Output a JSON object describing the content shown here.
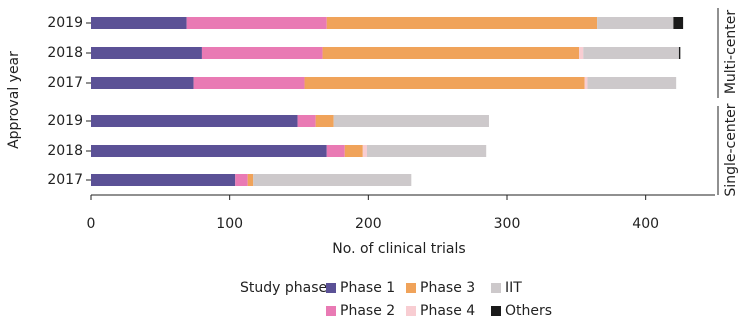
{
  "chart_data": {
    "type": "bar",
    "orientation": "horizontal",
    "stacked": true,
    "x_label": "No. of clinical trials",
    "y_label": "Approval year",
    "legend_title": "Study phase",
    "xlim": [
      0,
      450
    ],
    "xticks": [
      0,
      100,
      200,
      300,
      400
    ],
    "series": [
      {
        "name": "Phase 1",
        "color": "#5b5196"
      },
      {
        "name": "Phase 2",
        "color": "#e97ab4"
      },
      {
        "name": "Phase 3",
        "color": "#f0a35a"
      },
      {
        "name": "Phase 4",
        "color": "#f8cdd2"
      },
      {
        "name": "IIT",
        "color": "#cdc9cb"
      },
      {
        "name": "Others",
        "color": "#1a1a1a"
      }
    ],
    "panels": [
      {
        "label": "Multi-center",
        "categories": [
          "2019",
          "2018",
          "2017"
        ],
        "series": [
          {
            "values": [
              69,
              80,
              74
            ]
          },
          {
            "values": [
              101,
              87,
              80
            ]
          },
          {
            "values": [
              195,
              185,
              202
            ]
          },
          {
            "values": [
              0,
              3,
              2
            ]
          },
          {
            "values": [
              55,
              69,
              64
            ]
          },
          {
            "values": [
              7,
              1,
              0
            ]
          }
        ]
      },
      {
        "label": "Single-center",
        "categories": [
          "2019",
          "2018",
          "2017"
        ],
        "series": [
          {
            "values": [
              149,
              170,
              104
            ]
          },
          {
            "values": [
              13,
              13,
              9
            ]
          },
          {
            "values": [
              13,
              13,
              4
            ]
          },
          {
            "values": [
              0,
              3,
              0
            ]
          },
          {
            "values": [
              112,
              86,
              114
            ]
          },
          {
            "values": [
              0,
              0,
              0
            ]
          }
        ]
      }
    ]
  }
}
